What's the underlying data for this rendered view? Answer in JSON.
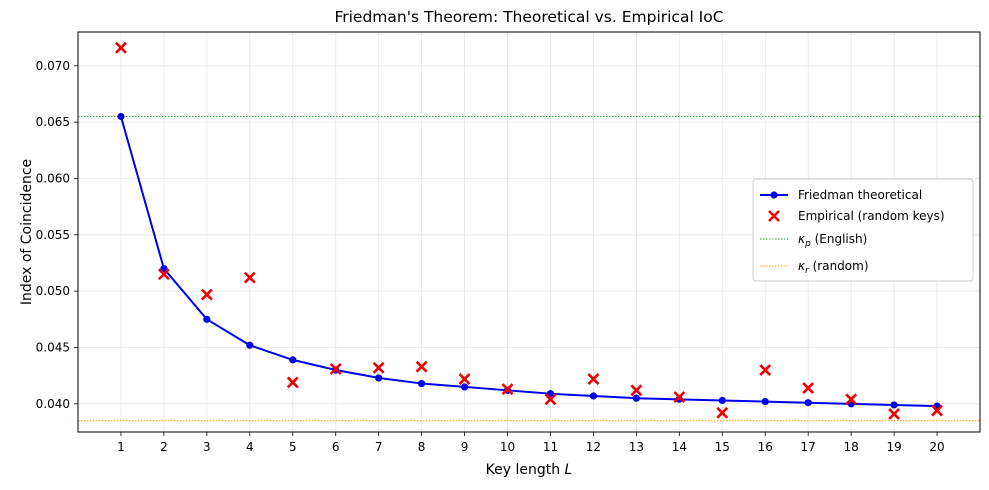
{
  "chart_data": {
    "type": "line",
    "title": "Friedman's Theorem: Theoretical vs. Empirical IoC",
    "xlabel": "Key length",
    "xlabel_var": "L",
    "ylabel": "Index of Coincidence",
    "xlim": [
      0,
      21
    ],
    "ylim": [
      0.0375,
      0.073
    ],
    "grid": true,
    "legend_position": "center-right",
    "x_ticks": [
      "1",
      "2",
      "3",
      "4",
      "5",
      "6",
      "7",
      "8",
      "9",
      "10",
      "11",
      "12",
      "13",
      "14",
      "15",
      "16",
      "17",
      "18",
      "19",
      "20"
    ],
    "y_ticks": [
      "0.040",
      "0.045",
      "0.050",
      "0.055",
      "0.060",
      "0.065",
      "0.070"
    ],
    "y_tick_values": [
      0.04,
      0.045,
      0.05,
      0.055,
      0.06,
      0.065,
      0.07
    ],
    "x": [
      1,
      2,
      3,
      4,
      5,
      6,
      7,
      8,
      9,
      10,
      11,
      12,
      13,
      14,
      15,
      16,
      17,
      18,
      19,
      20
    ],
    "series": [
      {
        "name": "Friedman theoretical",
        "kind": "line",
        "color": "#0000ee",
        "values": [
          0.0655,
          0.052,
          0.0475,
          0.0452,
          0.0439,
          0.043,
          0.0423,
          0.0418,
          0.0415,
          0.0412,
          0.0409,
          0.0407,
          0.0405,
          0.0404,
          0.0403,
          0.0402,
          0.0401,
          0.04,
          0.0399,
          0.0398
        ]
      },
      {
        "name": "Empirical (random keys)",
        "kind": "scatter",
        "color": "#ee0000",
        "values": [
          0.0716,
          0.0515,
          0.0497,
          0.0512,
          0.0419,
          0.0431,
          0.0432,
          0.0433,
          0.0422,
          0.0413,
          0.0404,
          0.0422,
          0.0412,
          0.0406,
          0.0392,
          0.043,
          0.0414,
          0.0404,
          0.0391,
          0.0394
        ]
      }
    ],
    "reference_lines": [
      {
        "name": "κp (English)",
        "symbol": "κ",
        "sub": "p",
        "suffix": " (English)",
        "value": 0.0655,
        "color": "#2ca02c",
        "style": "dotted"
      },
      {
        "name": "κr (random)",
        "symbol": "κ",
        "sub": "r",
        "suffix": " (random)",
        "value": 0.0385,
        "color": "#ff9900",
        "style": "dotted"
      }
    ]
  }
}
